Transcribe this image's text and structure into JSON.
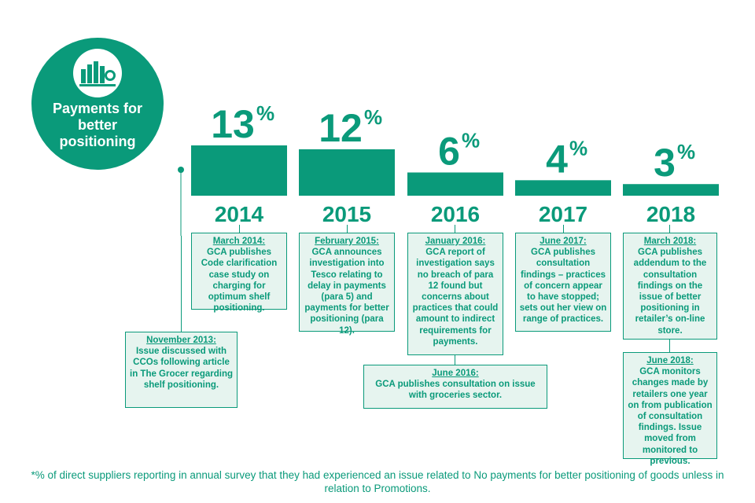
{
  "badge": {
    "title": "Payments for\nbetter\npositioning",
    "icon": "bar-chart-coins-icon"
  },
  "colors": {
    "accent": "#0a9a7a",
    "box_fill": "#e6f4ef",
    "background": "#ffffff"
  },
  "chart_data": {
    "type": "bar",
    "title": "Payments for better positioning",
    "categories": [
      "2014",
      "2015",
      "2016",
      "2017",
      "2018"
    ],
    "values": [
      13,
      12,
      6,
      4,
      3
    ],
    "value_labels": [
      "13",
      "12",
      "6",
      "4",
      "3"
    ],
    "unit": "%",
    "ylim": [
      0,
      13
    ]
  },
  "events": {
    "e2013": {
      "date": "November 2013:",
      "text": "Issue discussed with CCOs following article in The Grocer regarding shelf positioning."
    },
    "e2014": {
      "date": "March 2014:",
      "text": "GCA publishes Code clarification case study on charging for optimum shelf positioning."
    },
    "e2015": {
      "date": "February 2015:",
      "text": "GCA announces investigation into Tesco relating to delay in payments (para 5) and payments for better positioning (para 12)."
    },
    "e2016a": {
      "date": "January 2016:",
      "text": "GCA report of investigation says no breach of para 12 found but concerns about practices that could amount to indirect requirements for payments."
    },
    "e2016b": {
      "date": "June 2016:",
      "text": "GCA publishes consultation on issue with groceries sector."
    },
    "e2017": {
      "date": "June 2017:",
      "text": "GCA publishes consultation findings – practices of concern appear to have stopped; sets out her view on range of practices."
    },
    "e2018a": {
      "date": "March 2018:",
      "text": "GCA publishes addendum to the consultation findings on the issue of better positioning in retailer’s on-line store."
    },
    "e2018b": {
      "date": "June 2018:",
      "text": "GCA monitors changes made by retailers one year on from publication of consultation findings. Issue moved from monitored to previous."
    }
  },
  "footnote": "*% of direct suppliers reporting in annual survey that they had experienced an issue related to No payments for better positioning of goods unless in relation to Promotions."
}
